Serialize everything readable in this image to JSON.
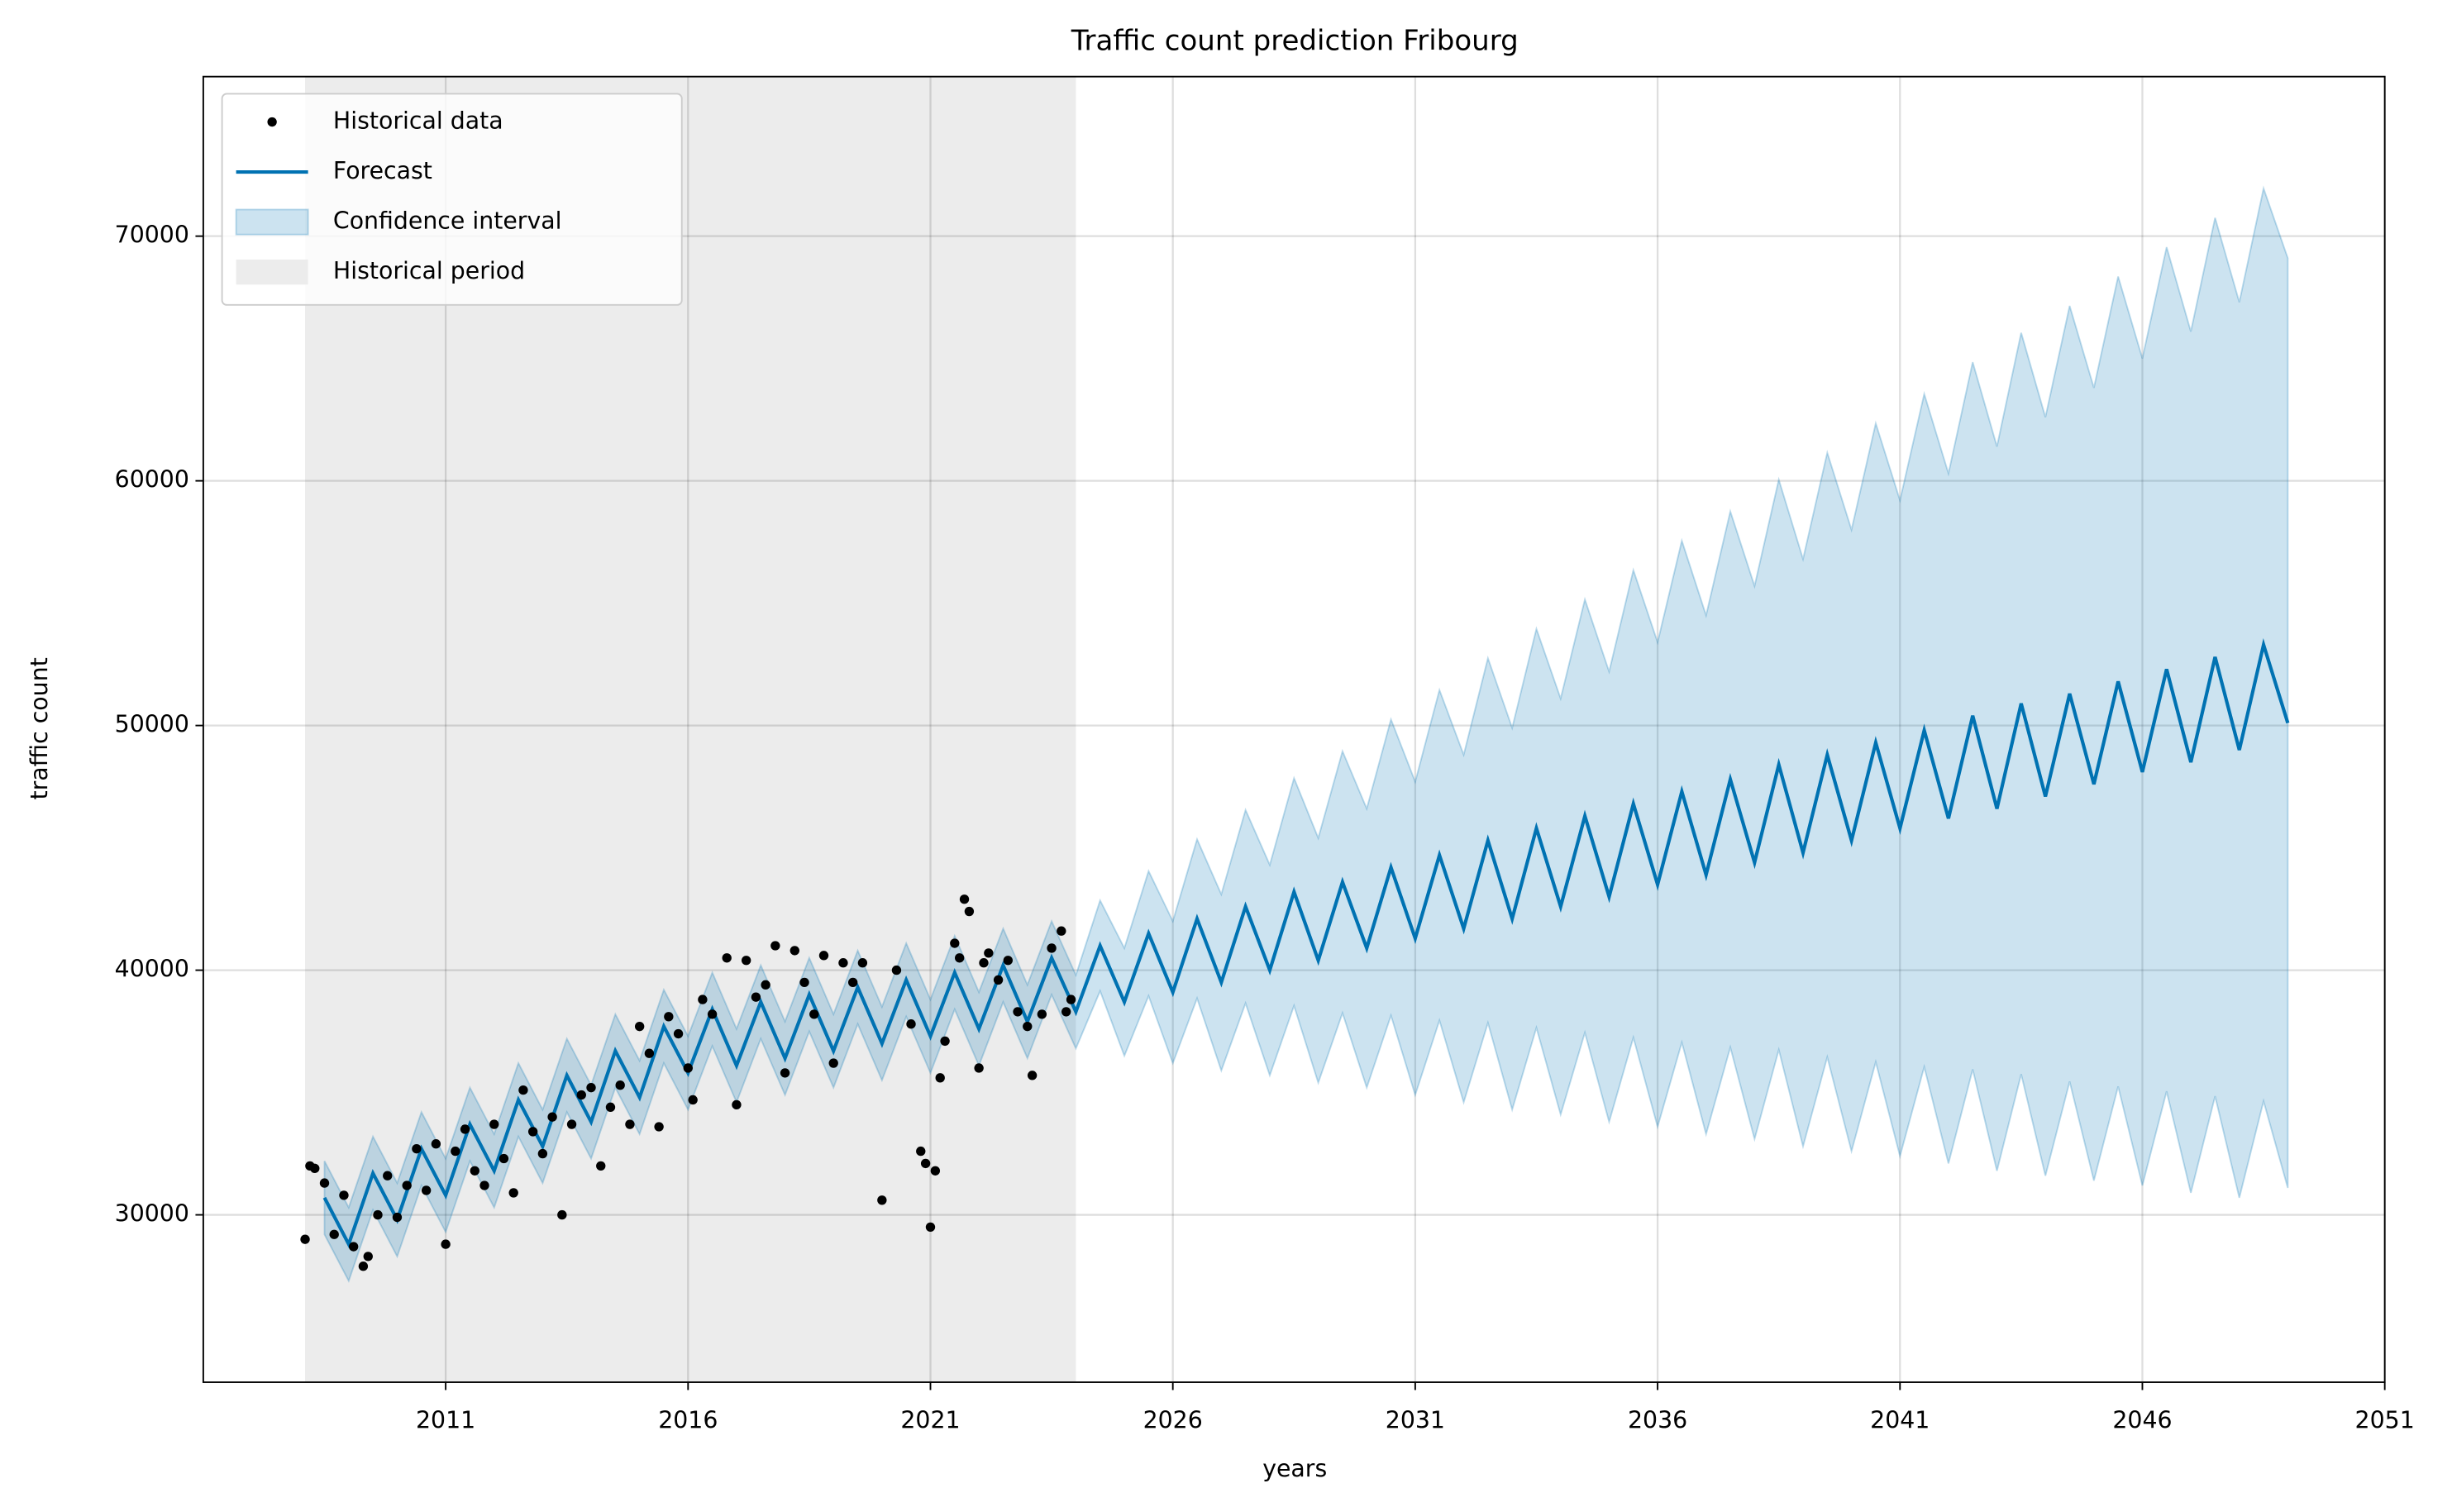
{
  "chart_data": {
    "type": "line",
    "title": "Traffic count prediction Fribourg",
    "xlabel": "years",
    "ylabel": "traffic count",
    "xlim": [
      2006,
      2051
    ],
    "ylim": [
      23160,
      76520
    ],
    "xticks": [
      2011,
      2016,
      2021,
      2026,
      2031,
      2036,
      2041,
      2046,
      2051
    ],
    "yticks": [
      30000,
      40000,
      50000,
      60000,
      70000
    ],
    "grid": true,
    "legend": "upper left",
    "shaded_region": {
      "name": "Historical period",
      "xrange": [
        2008.1,
        2024.0
      ],
      "color": "#ececec"
    },
    "x": [
      2008.5,
      2009,
      2009.5,
      2010,
      2010.5,
      2011,
      2011.5,
      2012,
      2012.5,
      2013,
      2013.5,
      2014,
      2014.5,
      2015,
      2015.5,
      2016,
      2016.5,
      2017,
      2017.5,
      2018,
      2018.5,
      2019,
      2019.5,
      2020,
      2020.5,
      2021,
      2021.5,
      2022,
      2022.5,
      2023,
      2023.5,
      2024,
      2024.5,
      2025,
      2025.5,
      2026,
      2026.5,
      2027,
      2027.5,
      2028,
      2028.5,
      2029,
      2029.5,
      2030,
      2030.5,
      2031,
      2031.5,
      2032,
      2032.5,
      2033,
      2033.5,
      2034,
      2034.5,
      2035,
      2035.5,
      2036,
      2036.5,
      2037,
      2037.5,
      2038,
      2038.5,
      2039,
      2039.5,
      2040,
      2040.5,
      2041,
      2041.5,
      2042,
      2042.5,
      2043,
      2043.5,
      2044,
      2044.5,
      2045,
      2045.5,
      2046,
      2046.5,
      2047,
      2047.5,
      2048,
      2048.5,
      2049
    ],
    "interval": {
      "name": "Confidence interval",
      "color": "#0072B2",
      "lower": [
        29200,
        27300,
        30200,
        28300,
        31200,
        29300,
        32200,
        30300,
        33200,
        31300,
        34200,
        32300,
        35200,
        33300,
        36200,
        34300,
        36900,
        34600,
        37200,
        34900,
        37500,
        35200,
        37800,
        35500,
        38100,
        35800,
        38400,
        36100,
        38700,
        36400,
        39000,
        36800,
        39150,
        36500,
        38950,
        36200,
        38850,
        35900,
        38650,
        35700,
        38550,
        35400,
        38250,
        35200,
        38150,
        34900,
        37950,
        34600,
        37850,
        34300,
        37650,
        34100,
        37450,
        33800,
        37250,
        33600,
        37050,
        33300,
        36850,
        33100,
        36750,
        32800,
        36450,
        32600,
        36250,
        32400,
        36050,
        32100,
        35950,
        31800,
        35750,
        31600,
        35450,
        31400,
        35250,
        31200,
        35050,
        30900,
        34850,
        30700,
        34650,
        31100
      ],
      "upper": [
        32200,
        30300,
        33200,
        31300,
        34200,
        32300,
        35200,
        33300,
        36200,
        34300,
        37200,
        35300,
        38200,
        36300,
        39200,
        37300,
        39900,
        37600,
        40200,
        37900,
        40500,
        38200,
        40800,
        38500,
        41100,
        38800,
        41400,
        39100,
        41700,
        39400,
        42000,
        39800,
        42850,
        40900,
        44050,
        42000,
        45350,
        43100,
        46550,
        44300,
        47850,
        45400,
        48950,
        46600,
        50250,
        47700,
        51450,
        48800,
        52750,
        49900,
        53950,
        51100,
        55150,
        52200,
        56350,
        53400,
        57550,
        54500,
        58750,
        55700,
        60050,
        56800,
        61150,
        58000,
        62350,
        59200,
        63550,
        60300,
        64850,
        61400,
        66050,
        62600,
        67150,
        63800,
        68350,
        65000,
        69550,
        66100,
        70750,
        67300,
        71950,
        69100
      ]
    },
    "series": [
      {
        "name": "Forecast",
        "color": "#0072B2",
        "values": [
          30700,
          28800,
          31700,
          29800,
          32700,
          30800,
          33700,
          31800,
          34700,
          32800,
          35700,
          33800,
          36700,
          34800,
          37700,
          35800,
          38400,
          36100,
          38700,
          36400,
          39000,
          36700,
          39300,
          37000,
          39600,
          37300,
          39900,
          37600,
          40200,
          37900,
          40500,
          38300,
          41000,
          38700,
          41500,
          39100,
          42100,
          39500,
          42600,
          40000,
          43200,
          40400,
          43600,
          40900,
          44200,
          41300,
          44700,
          41700,
          45300,
          42100,
          45800,
          42600,
          46300,
          43000,
          46800,
          43500,
          47300,
          43900,
          47800,
          44400,
          48400,
          44800,
          48800,
          45300,
          49300,
          45800,
          49800,
          46200,
          50400,
          46600,
          50900,
          47100,
          51300,
          47600,
          51800,
          48100,
          52300,
          48500,
          52800,
          49000,
          53300,
          50100
        ]
      }
    ],
    "scatter": {
      "name": "Historical data",
      "color": "#000000",
      "x": [
        2008.1,
        2008.2,
        2008.3,
        2008.5,
        2008.7,
        2008.9,
        2009.1,
        2009.3,
        2009.4,
        2009.6,
        2009.8,
        2010.0,
        2010.2,
        2010.4,
        2010.6,
        2010.8,
        2011.0,
        2011.2,
        2011.4,
        2011.6,
        2011.8,
        2012.0,
        2012.2,
        2012.4,
        2012.6,
        2012.8,
        2013.0,
        2013.2,
        2013.4,
        2013.6,
        2013.8,
        2014.0,
        2014.2,
        2014.4,
        2014.6,
        2014.8,
        2015.0,
        2015.2,
        2015.4,
        2015.6,
        2015.8,
        2016.0,
        2016.1,
        2016.3,
        2016.5,
        2016.8,
        2017.0,
        2017.2,
        2017.4,
        2017.6,
        2017.8,
        2018.0,
        2018.2,
        2018.4,
        2018.6,
        2018.8,
        2019.0,
        2019.2,
        2019.4,
        2019.6,
        2020.0,
        2020.3,
        2020.6,
        2020.8,
        2020.9,
        2021.0,
        2021.1,
        2021.2,
        2021.3,
        2021.5,
        2021.6,
        2021.7,
        2021.8,
        2022.0,
        2022.1,
        2022.2,
        2022.4,
        2022.6,
        2022.8,
        2023.0,
        2023.1,
        2023.3,
        2023.5,
        2023.7,
        2023.8,
        2023.9
      ],
      "values": [
        29000,
        32000,
        31900,
        31300,
        29200,
        30800,
        28700,
        27900,
        28300,
        30000,
        31600,
        29900,
        31200,
        32700,
        31000,
        32900,
        28800,
        32600,
        33500,
        31800,
        31200,
        33700,
        32300,
        30900,
        35100,
        33400,
        32500,
        34000,
        30000,
        33700,
        34900,
        35200,
        32000,
        34400,
        35300,
        33700,
        37700,
        36600,
        33600,
        38100,
        37400,
        36000,
        34700,
        38800,
        38200,
        40500,
        34500,
        40400,
        38900,
        39400,
        41000,
        35800,
        40800,
        39500,
        38200,
        40600,
        36200,
        40300,
        39500,
        40300,
        30600,
        40000,
        37800,
        32600,
        32100,
        29500,
        31800,
        35600,
        37100,
        41100,
        40500,
        42900,
        42400,
        36000,
        40300,
        40700,
        39600,
        40400,
        38300,
        37700,
        35700,
        38200,
        40900,
        41600,
        38300,
        38800
      ]
    }
  }
}
